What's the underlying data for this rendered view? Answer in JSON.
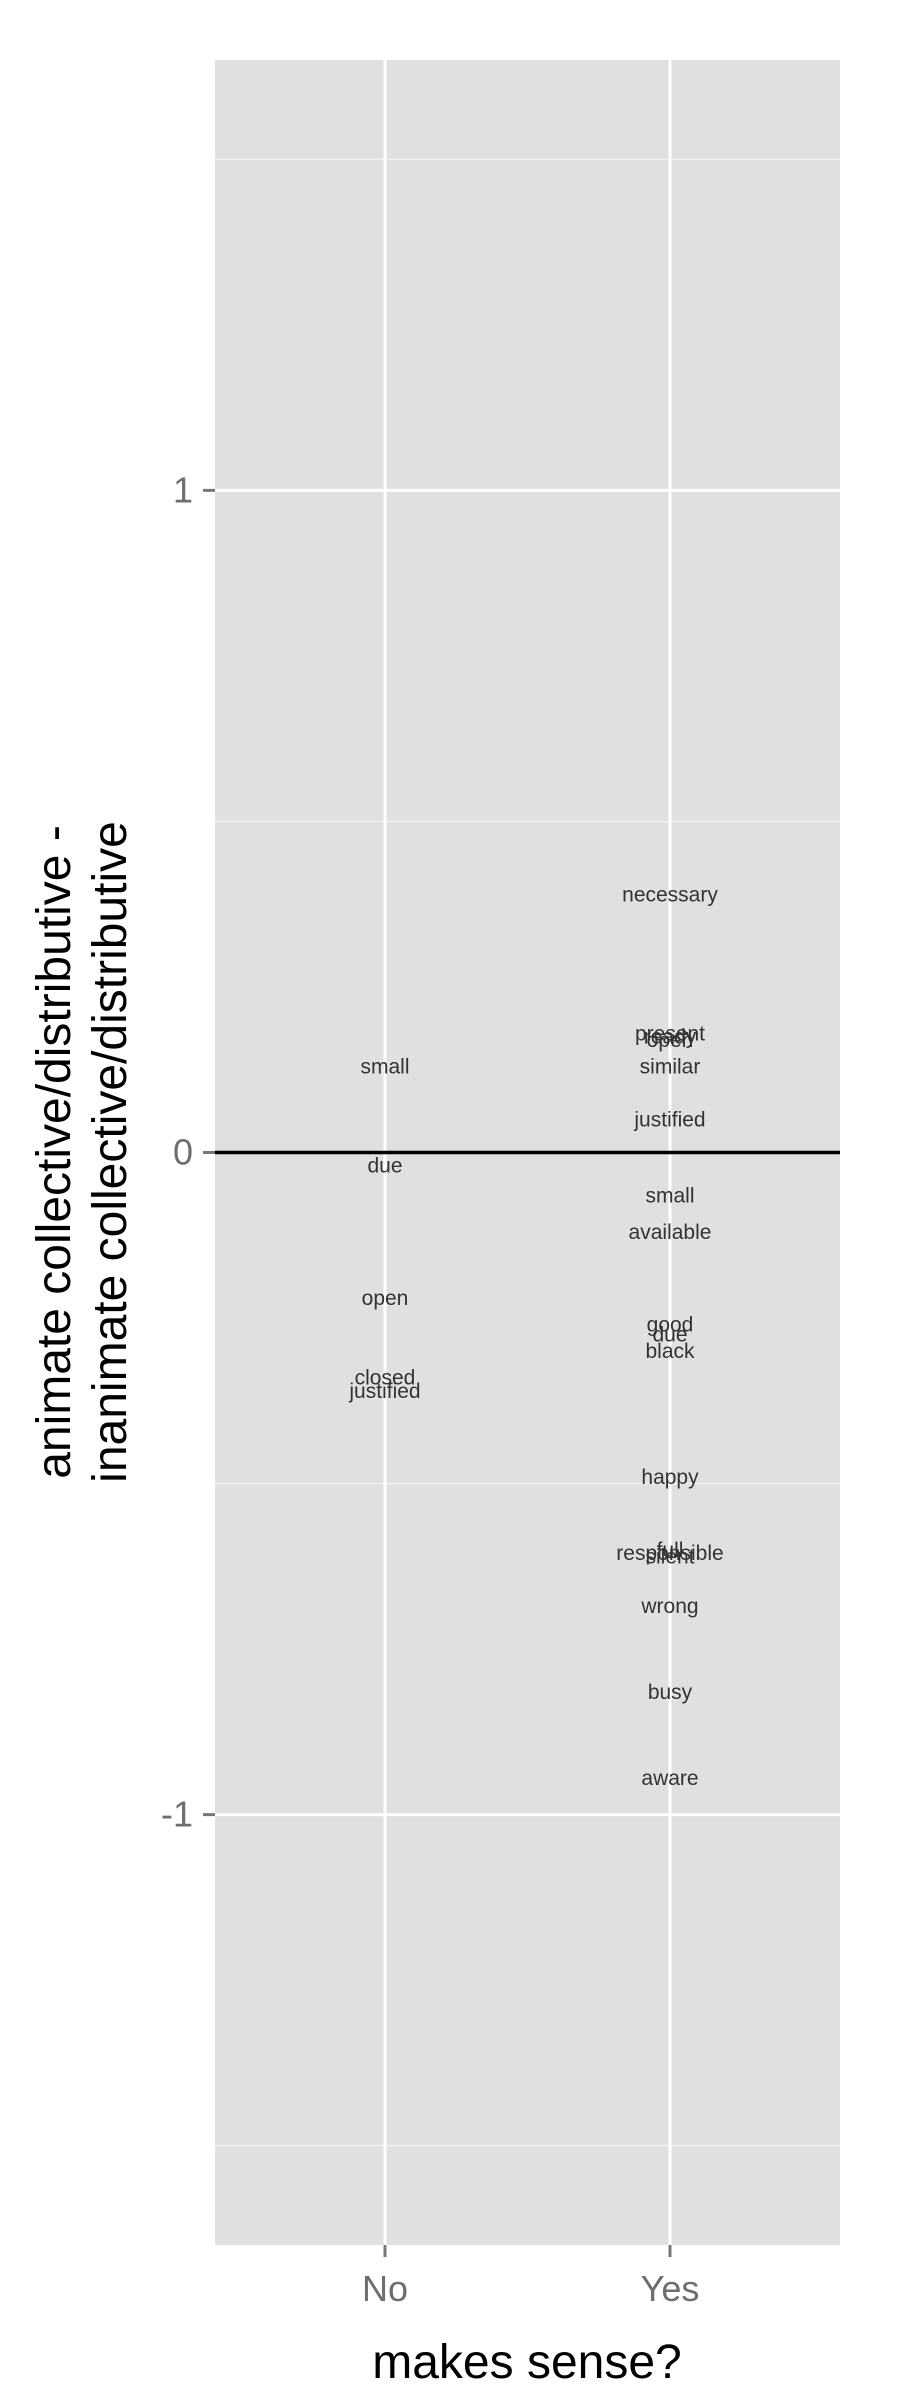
{
  "chart_data": {
    "type": "scatter",
    "xlabel": "makes sense?",
    "ylabel_lines": [
      "animate collective/distributive -",
      "inanimate collective/distributive"
    ],
    "categories": [
      "No",
      "Yes"
    ],
    "ylim": [
      -1.65,
      1.65
    ],
    "y_major_ticks": [
      -1,
      0,
      1
    ],
    "y_tick_labels": [
      "-1",
      "0",
      "1"
    ],
    "y_minor_ticks": [
      -1.5,
      -0.5,
      0.5,
      1.5
    ],
    "reference_line_y": 0,
    "grid": true,
    "points": [
      {
        "x": "No",
        "y": 0.13,
        "label": "small"
      },
      {
        "x": "No",
        "y": -0.02,
        "label": "due"
      },
      {
        "x": "No",
        "y": -0.22,
        "label": "open"
      },
      {
        "x": "No",
        "y": -0.34,
        "label": "closed"
      },
      {
        "x": "No",
        "y": -0.36,
        "label": "justified"
      },
      {
        "x": "Yes",
        "y": 0.39,
        "label": "necessary"
      },
      {
        "x": "Yes",
        "y": 0.18,
        "label": "present"
      },
      {
        "x": "Yes",
        "y": 0.175,
        "label": "ready"
      },
      {
        "x": "Yes",
        "y": 0.17,
        "label": "open"
      },
      {
        "x": "Yes",
        "y": 0.13,
        "label": "similar"
      },
      {
        "x": "Yes",
        "y": 0.05,
        "label": "justified"
      },
      {
        "x": "Yes",
        "y": -0.065,
        "label": "small"
      },
      {
        "x": "Yes",
        "y": -0.12,
        "label": "available"
      },
      {
        "x": "Yes",
        "y": -0.26,
        "label": "good"
      },
      {
        "x": "Yes",
        "y": -0.275,
        "label": "due"
      },
      {
        "x": "Yes",
        "y": -0.3,
        "label": "black"
      },
      {
        "x": "Yes",
        "y": -0.49,
        "label": "happy"
      },
      {
        "x": "Yes",
        "y": -0.6,
        "label": "full"
      },
      {
        "x": "Yes",
        "y": -0.605,
        "label": "responsible"
      },
      {
        "x": "Yes",
        "y": -0.61,
        "label": "silent"
      },
      {
        "x": "Yes",
        "y": -0.685,
        "label": "wrong"
      },
      {
        "x": "Yes",
        "y": -0.815,
        "label": "busy"
      },
      {
        "x": "Yes",
        "y": -0.945,
        "label": "aware"
      }
    ]
  }
}
